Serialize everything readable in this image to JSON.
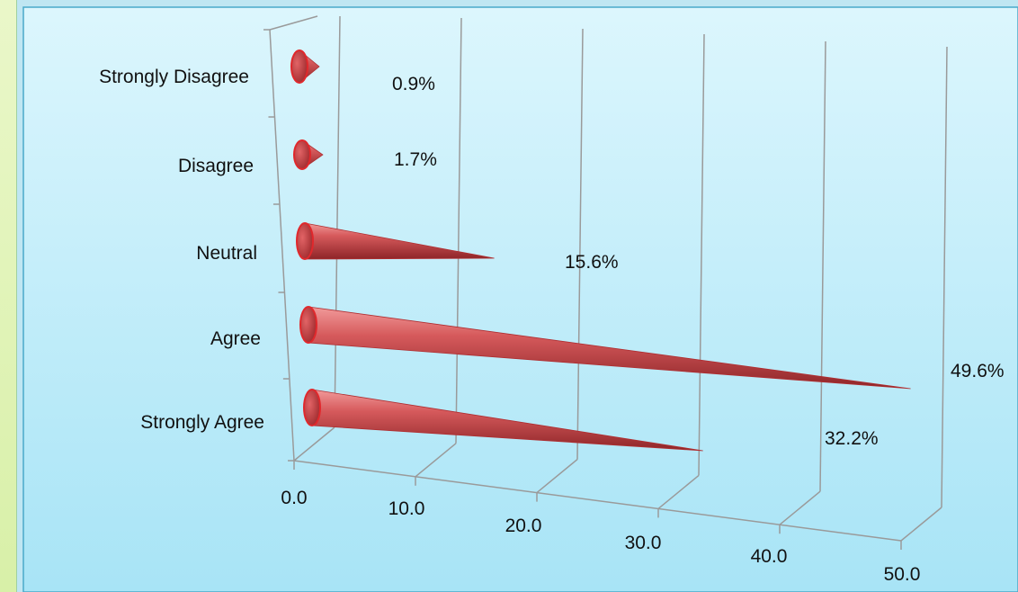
{
  "chart_data": {
    "type": "bar",
    "orientation": "horizontal",
    "style": "3d-cone",
    "categories": [
      "Strongly Disagree",
      "Disagree",
      "Neutral",
      "Agree",
      "Strongly Agree"
    ],
    "values": [
      0.9,
      1.7,
      15.6,
      49.6,
      32.2
    ],
    "value_labels": [
      "0.9%",
      "1.7%",
      "15.6%",
      "49.6%",
      "32.2%"
    ],
    "xticks": [
      "0.0",
      "10.0",
      "20.0",
      "30.0",
      "40.0",
      "50.0"
    ],
    "xlim": [
      0,
      50
    ],
    "grid": true,
    "legend": "none",
    "colors": {
      "bar": "#c94a4c",
      "bar_edge": "#e0282c",
      "axis": "#9a9a9a",
      "background": "#cdf0fa"
    }
  }
}
